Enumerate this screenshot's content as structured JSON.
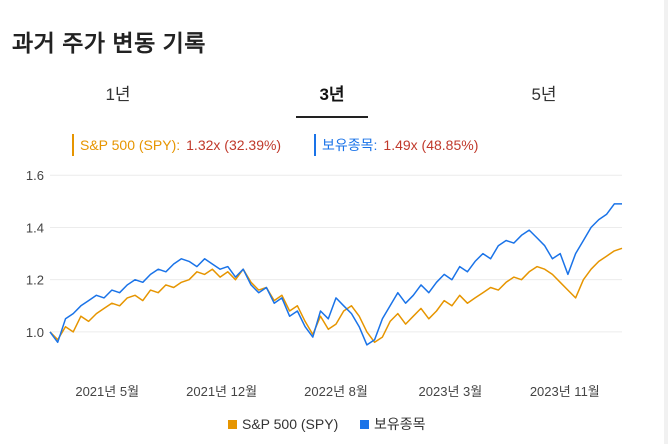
{
  "page": {
    "title": "과거 주가 변동 기록"
  },
  "tabs": [
    {
      "label": "1년",
      "active": false
    },
    {
      "label": "3년",
      "active": true
    },
    {
      "label": "5년",
      "active": false
    }
  ],
  "summary": [
    {
      "name": "S&P 500 (SPY):",
      "value": "1.32x (32.39%)",
      "color": "#e69500"
    },
    {
      "name": "보유종목:",
      "value": "1.49x (48.85%)",
      "color": "#1a73e8"
    }
  ],
  "chart_data": {
    "type": "line",
    "ylim": [
      0.9,
      1.62
    ],
    "yticks": [
      "1.0",
      "1.2",
      "1.4",
      "1.6"
    ],
    "ytick_values": [
      1.0,
      1.2,
      1.4,
      1.6
    ],
    "xticks": [
      "2021년 5월",
      "2021년 12월",
      "2022년 8월",
      "2023년 3월",
      "2023년 11월"
    ],
    "xtick_positions": [
      0.1,
      0.3,
      0.5,
      0.7,
      0.9
    ],
    "grid": true,
    "legend_position": "bottom",
    "series": [
      {
        "name": "S&P 500 (SPY)",
        "color": "#e69500",
        "values": [
          1.0,
          0.97,
          1.02,
          1.0,
          1.06,
          1.04,
          1.07,
          1.09,
          1.11,
          1.1,
          1.13,
          1.14,
          1.12,
          1.16,
          1.15,
          1.18,
          1.17,
          1.19,
          1.2,
          1.23,
          1.22,
          1.24,
          1.21,
          1.23,
          1.2,
          1.24,
          1.19,
          1.16,
          1.17,
          1.12,
          1.14,
          1.08,
          1.1,
          1.04,
          0.99,
          1.06,
          1.01,
          1.03,
          1.08,
          1.1,
          1.06,
          1.0,
          0.96,
          0.98,
          1.04,
          1.07,
          1.03,
          1.06,
          1.09,
          1.05,
          1.08,
          1.12,
          1.1,
          1.14,
          1.11,
          1.13,
          1.15,
          1.17,
          1.16,
          1.19,
          1.21,
          1.2,
          1.23,
          1.25,
          1.24,
          1.22,
          1.19,
          1.16,
          1.13,
          1.2,
          1.24,
          1.27,
          1.29,
          1.31,
          1.32
        ]
      },
      {
        "name": "보유종목",
        "color": "#1a73e8",
        "values": [
          1.0,
          0.96,
          1.05,
          1.07,
          1.1,
          1.12,
          1.14,
          1.13,
          1.16,
          1.15,
          1.18,
          1.2,
          1.19,
          1.22,
          1.24,
          1.23,
          1.26,
          1.28,
          1.27,
          1.25,
          1.28,
          1.26,
          1.24,
          1.25,
          1.21,
          1.24,
          1.18,
          1.15,
          1.17,
          1.11,
          1.13,
          1.06,
          1.08,
          1.02,
          0.98,
          1.08,
          1.05,
          1.13,
          1.1,
          1.07,
          1.02,
          0.95,
          0.97,
          1.05,
          1.1,
          1.15,
          1.11,
          1.14,
          1.18,
          1.15,
          1.19,
          1.22,
          1.2,
          1.25,
          1.23,
          1.27,
          1.3,
          1.28,
          1.33,
          1.35,
          1.34,
          1.37,
          1.39,
          1.36,
          1.33,
          1.28,
          1.3,
          1.22,
          1.3,
          1.35,
          1.4,
          1.43,
          1.45,
          1.49,
          1.49
        ]
      }
    ]
  }
}
